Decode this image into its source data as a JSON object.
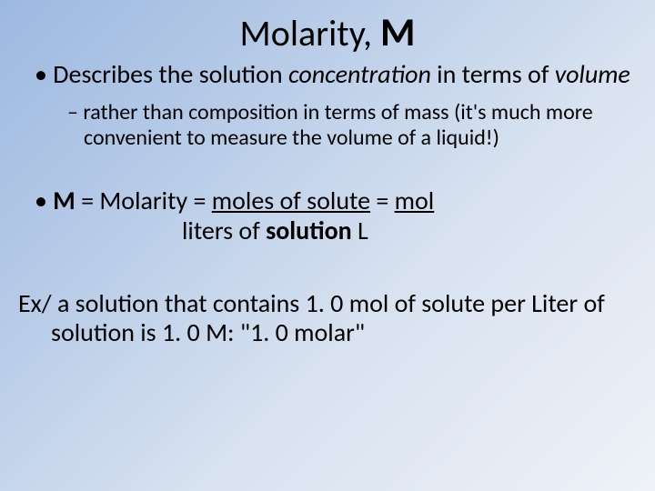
{
  "title": {
    "prefix": "Molarity, ",
    "symbol": "M"
  },
  "bullet1": {
    "text1": "Describes the solution ",
    "concentration": "concentration",
    "text2": " in terms of ",
    "volume": "volume"
  },
  "bullet2": {
    "text": "rather than composition in terms of mass (it's much more convenient to measure the volume of a liquid!)"
  },
  "formula": {
    "m": "M",
    "eq1": " = Molarity = ",
    "numerator": "moles of solute",
    "eq2": "   = ",
    "mol": "mol",
    "denom1": "liters of ",
    "solution": "solution",
    "spacer": "       ",
    "L": "L"
  },
  "example": {
    "text1": "Ex/ a solution that contains 1. 0 mol of solute per Liter of solution is 1. 0 M:     \"1. 0 molar\""
  },
  "styling": {
    "background_gradient_start": "#9db8e0",
    "background_gradient_end": "#eef2f8",
    "text_color": "#000000",
    "title_fontsize": 40,
    "title_symbol_fontsize": 44,
    "body_fontsize": 28,
    "sub_fontsize": 24,
    "font_family": "Calibri"
  }
}
